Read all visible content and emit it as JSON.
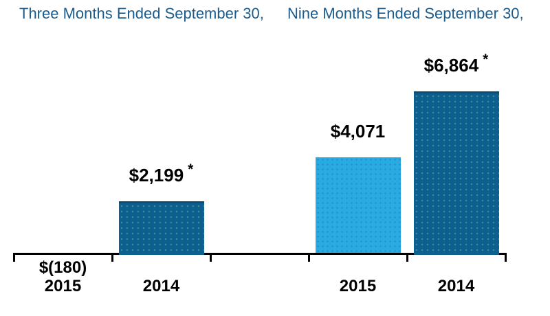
{
  "colors": {
    "header_text": "#1c5c8d",
    "bar_dark": "#0d5f8f",
    "bar_dark_top_edge": "#0a4b73",
    "bar_light": "#29aae1",
    "axis": "#000000",
    "value_text": "#000000"
  },
  "footnote_marker": "*",
  "chart_data": {
    "type": "bar",
    "groups": [
      {
        "title": "Three Months Ended September 30,",
        "bars": [
          {
            "category": "2015",
            "value": -180,
            "label": "$(180)",
            "asterisk": false,
            "color": "none"
          },
          {
            "category": "2014",
            "value": 2199,
            "label": "$2,199",
            "asterisk": true,
            "color": "dark"
          }
        ]
      },
      {
        "title": "Nine Months Ended September 30,",
        "bars": [
          {
            "category": "2015",
            "value": 4071,
            "label": "$4,071",
            "asterisk": false,
            "color": "light"
          },
          {
            "category": "2014",
            "value": 6864,
            "label": "$6,864",
            "asterisk": true,
            "color": "dark"
          }
        ]
      }
    ],
    "axis": {
      "baseline_value": 0,
      "gridlines": false,
      "tick_count": 6
    },
    "legend": null,
    "notes": "negative value shown as text below baseline, no bar drawn; asterisk footnote markers on 2014 values"
  }
}
